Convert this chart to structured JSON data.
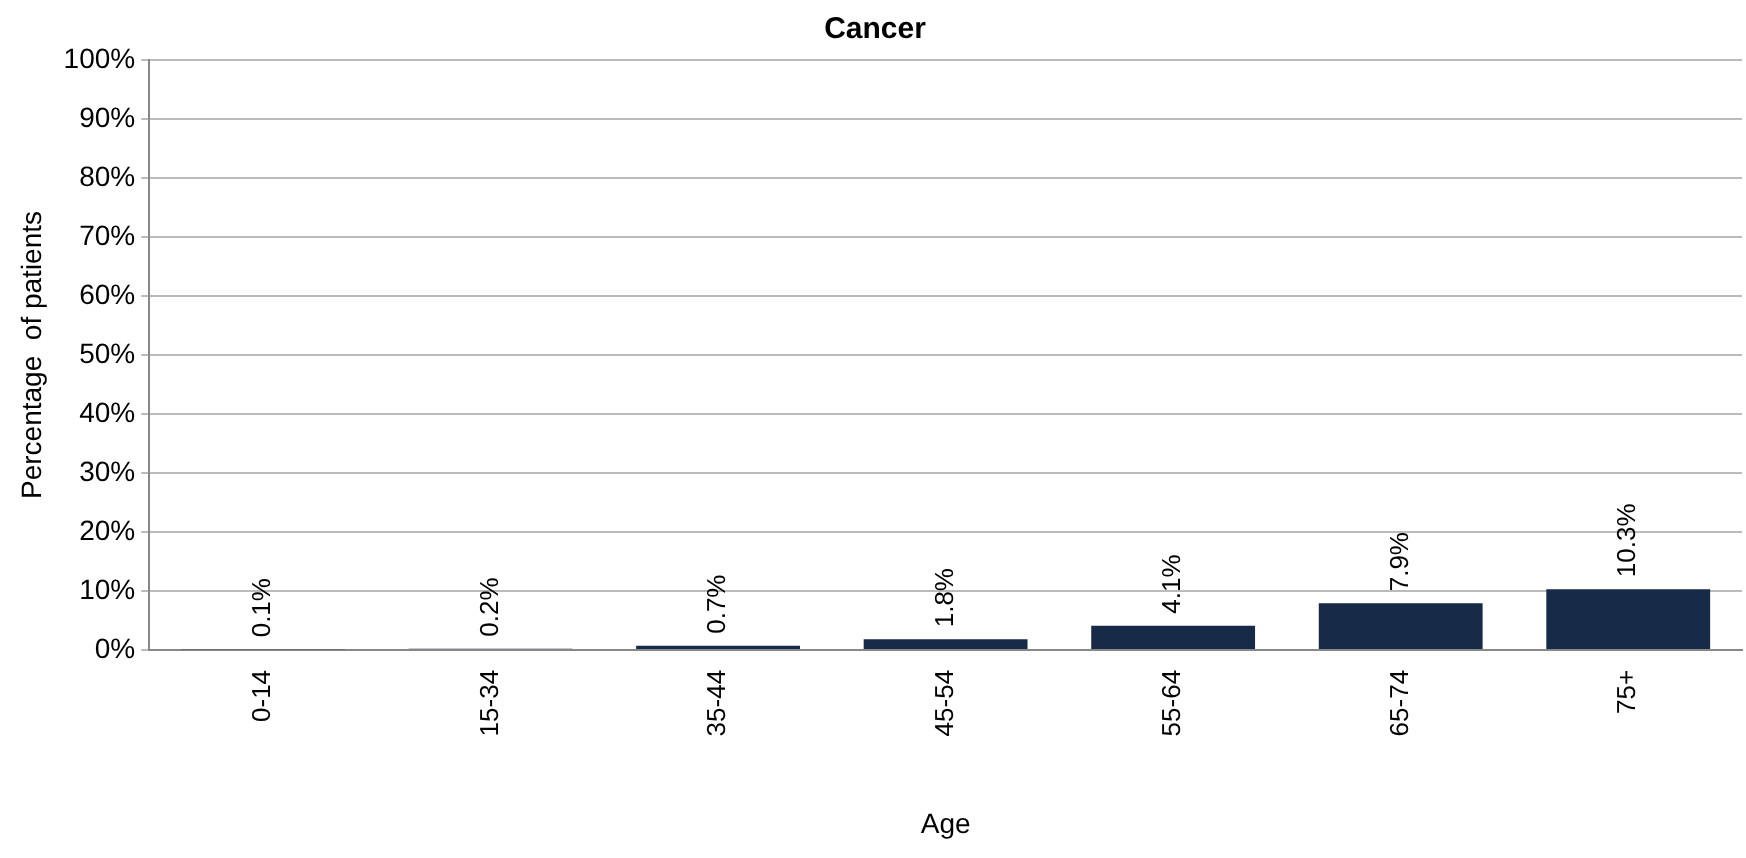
{
  "chart_data": {
    "type": "bar",
    "title": "Cancer",
    "xlabel": "Age",
    "ylabel": "Percentage  of patients",
    "categories": [
      "0-14",
      "15-34",
      "35-44",
      "45-54",
      "55-64",
      "65-74",
      "75+"
    ],
    "values": [
      0.1,
      0.2,
      0.7,
      1.8,
      4.1,
      7.9,
      10.3
    ],
    "value_labels": [
      "0.1%",
      "0.2%",
      "0.7%",
      "1.8%",
      "4.1%",
      "7.9%",
      "10.3%"
    ],
    "color": "#172a48",
    "ylim": [
      0,
      100
    ],
    "yticks": [
      {
        "value": 0,
        "label": "0%"
      },
      {
        "value": 10,
        "label": "10%"
      },
      {
        "value": 20,
        "label": "20%"
      },
      {
        "value": 30,
        "label": "30%"
      },
      {
        "value": 40,
        "label": "40%"
      },
      {
        "value": 50,
        "label": "50%"
      },
      {
        "value": 60,
        "label": "60%"
      },
      {
        "value": 70,
        "label": "70%"
      },
      {
        "value": 80,
        "label": "80%"
      },
      {
        "value": 90,
        "label": "90%"
      },
      {
        "value": 100,
        "label": "100%"
      }
    ],
    "grid": "y",
    "legend": false
  }
}
